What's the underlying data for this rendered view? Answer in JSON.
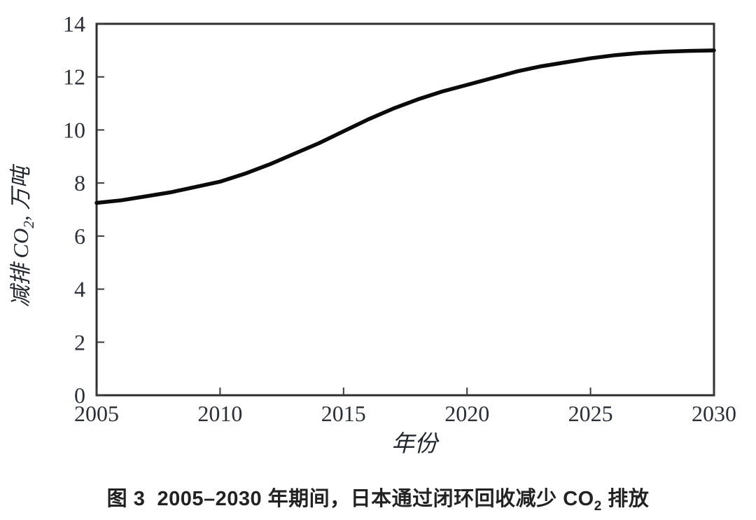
{
  "figure": {
    "caption": {
      "prefix": "图 3  2005–2030 年期间，日本通过闭环回收减少 CO",
      "sub": "2",
      "suffix": " 排放",
      "full_text": "图 3 2005–2030 年期间，日本通过闭环回收减少 CO2 排放"
    }
  },
  "chart_data": {
    "type": "line",
    "title": "",
    "xlabel": "年份",
    "ylabel": "减排 CO2, 万吨",
    "ylabel_parts": {
      "prefix": "减排 CO",
      "sub": "2",
      "suffix": ", 万吨"
    },
    "xlim": [
      2005,
      2030
    ],
    "ylim": [
      0,
      14
    ],
    "xticks": [
      "2005",
      "2010",
      "2015",
      "2020",
      "2025",
      "2030"
    ],
    "yticks": [
      "0",
      "2",
      "4",
      "6",
      "8",
      "10",
      "12",
      "14"
    ],
    "grid": false,
    "legend": "none",
    "line_color": "#0b0b0b",
    "series": [
      {
        "name": "减排 CO2 (万吨)",
        "x": [
          2005,
          2006,
          2007,
          2008,
          2009,
          2010,
          2011,
          2012,
          2013,
          2014,
          2015,
          2016,
          2017,
          2018,
          2019,
          2020,
          2021,
          2022,
          2023,
          2024,
          2025,
          2026,
          2027,
          2028,
          2029,
          2030
        ],
        "values": [
          7.25,
          7.35,
          7.5,
          7.65,
          7.85,
          8.05,
          8.35,
          8.7,
          9.1,
          9.5,
          9.95,
          10.4,
          10.8,
          11.15,
          11.45,
          11.7,
          11.95,
          12.2,
          12.4,
          12.55,
          12.7,
          12.82,
          12.9,
          12.95,
          12.98,
          13.0
        ]
      }
    ]
  }
}
